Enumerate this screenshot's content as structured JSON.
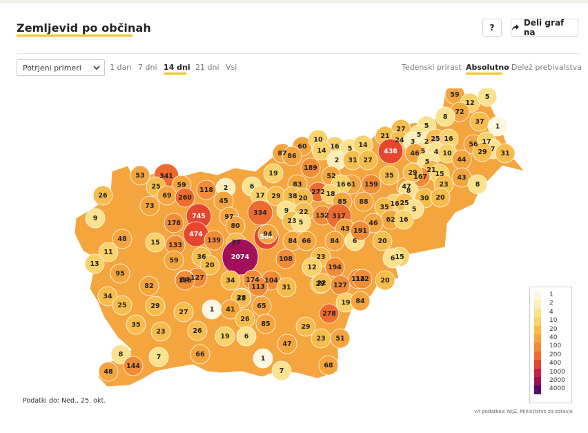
{
  "header": {
    "title": "Zemljevid po občinah",
    "help_label": "?",
    "share_label": "Deli graf na"
  },
  "controls": {
    "measure_select": "Potrjeni primeri",
    "periods": [
      "1 dan",
      "7 dni",
      "14 dni",
      "21 dni",
      "Vsi"
    ],
    "active_period": "14 dni",
    "modes": [
      "Tedenski prirast",
      "Absolutno",
      "Delež prebivalstva"
    ],
    "active_mode": "Absolutno",
    "accent_color": "#f5c518"
  },
  "legend": {
    "labels": [
      "1",
      "2",
      "4",
      "10",
      "20",
      "40",
      "100",
      "200",
      "400",
      "1000",
      "2000",
      "4000"
    ],
    "colors": [
      "#fdf6e0",
      "#fceeb8",
      "#fbe28f",
      "#f9d26a",
      "#f7bd4c",
      "#f5a53d",
      "#f28b35",
      "#ee6b30",
      "#e6452e",
      "#cc1f47",
      "#a10f59",
      "#5a0b63"
    ]
  },
  "map": {
    "labels": [
      "59",
      "12",
      "5",
      "72",
      "8",
      "37",
      "1",
      "5",
      "27",
      "5",
      "21",
      "24",
      "3",
      "2",
      "25",
      "16",
      "56",
      "17",
      "5",
      "7",
      "29",
      "31",
      "60",
      "10",
      "16",
      "5",
      "14",
      "438",
      "46",
      "4",
      "10",
      "87",
      "86",
      "14",
      "2",
      "31",
      "27",
      "5",
      "21",
      "44",
      "15",
      "23",
      "43",
      "8",
      "189",
      "52",
      "159",
      "35",
      "47",
      "167",
      "29",
      "53",
      "341",
      "25",
      "59",
      "118",
      "2",
      "6",
      "19",
      "83",
      "272",
      "61",
      "16",
      "18",
      "8",
      "26",
      "69",
      "260",
      "45",
      "17",
      "29",
      "38",
      "20",
      "85",
      "88",
      "16",
      "25",
      "30",
      "20",
      "9",
      "73",
      "745",
      "97",
      "334",
      "9",
      "22",
      "152",
      "317",
      "35",
      "5",
      "62",
      "16",
      "178",
      "80",
      "23",
      "5",
      "46",
      "43",
      "474",
      "139",
      "37",
      "564",
      "94",
      "84",
      "66",
      "84",
      "6",
      "191",
      "20",
      "48",
      "15",
      "133",
      "2074",
      "11",
      "13",
      "59",
      "36",
      "20",
      "108",
      "23",
      "15",
      "6",
      "95",
      "127",
      "84",
      "34",
      "174",
      "104",
      "12",
      "194",
      "29",
      "114",
      "82",
      "115",
      "113",
      "31",
      "22",
      "127",
      "132",
      "20",
      "34",
      "28",
      "25",
      "29",
      "31",
      "65",
      "19",
      "84",
      "27",
      "1",
      "41",
      "26",
      "85",
      "278",
      "35",
      "23",
      "26",
      "19",
      "6",
      "29",
      "23",
      "51",
      "47",
      "66",
      "8",
      "7",
      "1",
      "7",
      "68",
      "48",
      "144"
    ]
  },
  "footer": {
    "date_text": "Podatki do: Ned., 25. okt.",
    "source_text": "vir podatkov: NIJZ, Ministrstvo za zdravje"
  }
}
